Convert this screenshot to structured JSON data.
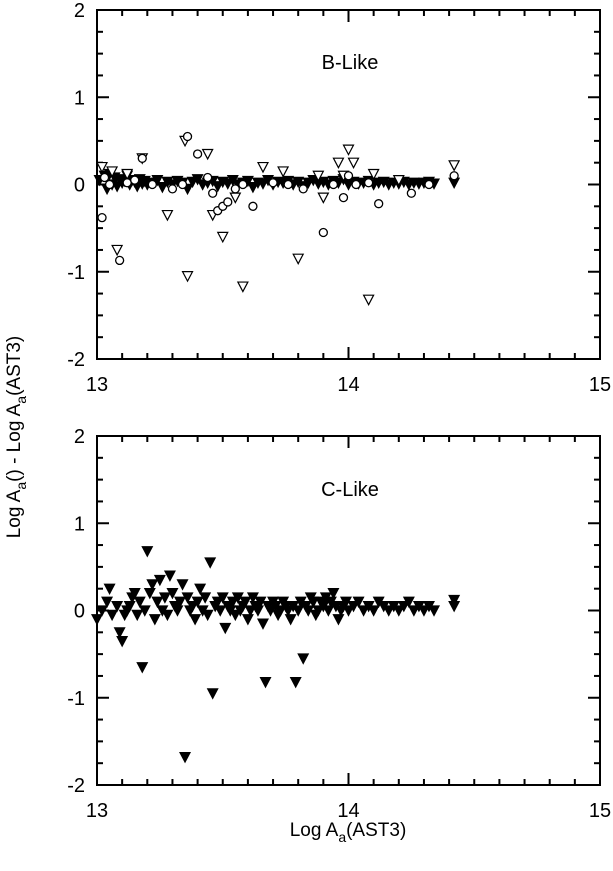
{
  "y_title": {
    "main": "Log A",
    "sub": "a",
    "tail": "() - Log A",
    "sub2": "a",
    "end": "(AST3)"
  },
  "x_title": {
    "main": "Log A",
    "sub": "a",
    "end": "(AST3)"
  },
  "chart_data": [
    {
      "type": "scatter",
      "panel_label": "B-Like",
      "xlim": [
        13,
        15
      ],
      "ylim": [
        -2,
        2
      ],
      "x_ticks": [
        "13",
        "14",
        "15"
      ],
      "y_ticks": [
        "2",
        "1",
        "0",
        "-1",
        "-2"
      ],
      "grid": false,
      "series": [
        {
          "marker": "filled-triangle-down",
          "x": [
            13.01,
            13.03,
            13.04,
            13.05,
            13.06,
            13.07,
            13.08,
            13.09,
            13.1,
            13.11,
            13.12,
            13.13,
            13.14,
            13.15,
            13.16,
            13.17,
            13.18,
            13.19,
            13.2,
            13.22,
            13.24,
            13.26,
            13.28,
            13.3,
            13.32,
            13.34,
            13.36,
            13.38,
            13.4,
            13.42,
            13.44,
            13.46,
            13.48,
            13.5,
            13.52,
            13.54,
            13.56,
            13.58,
            13.6,
            13.62,
            13.64,
            13.66,
            13.68,
            13.7,
            13.72,
            13.74,
            13.76,
            13.78,
            13.8,
            13.82,
            13.84,
            13.86,
            13.88,
            13.9,
            13.92,
            13.94,
            13.96,
            13.98,
            14.0,
            14.02,
            14.04,
            14.06,
            14.08,
            14.1,
            14.12,
            14.14,
            14.16,
            14.18,
            14.2,
            14.22,
            14.24,
            14.26,
            14.28,
            14.3,
            14.32,
            14.34,
            14.42
          ],
          "y": [
            0.05,
            0.1,
            -0.05,
            0.12,
            0.0,
            0.08,
            -0.02,
            0.06,
            0.02,
            0.04,
            0.1,
            0.0,
            0.05,
            0.03,
            -0.02,
            0.06,
            0.01,
            0.04,
            0.0,
            0.02,
            0.05,
            -0.03,
            0.03,
            0.0,
            0.04,
            0.02,
            -0.05,
            0.03,
            0.06,
            0.0,
            0.02,
            0.04,
            -0.02,
            0.03,
            0.01,
            0.05,
            0.0,
            0.02,
            0.04,
            -0.03,
            0.02,
            0.01,
            0.05,
            0.0,
            0.03,
            0.02,
            0.04,
            0.0,
            0.03,
            -0.02,
            0.02,
            0.05,
            0.01,
            0.03,
            0.0,
            0.04,
            0.02,
            0.06,
            0.0,
            0.03,
            0.01,
            0.02,
            0.04,
            0.0,
            0.02,
            0.03,
            0.0,
            0.02,
            0.01,
            0.03,
            0.0,
            0.02,
            0.01,
            0.02,
            0.03,
            0.01,
            0.02
          ]
        },
        {
          "marker": "open-triangle-down",
          "x": [
            13.02,
            13.06,
            13.08,
            13.12,
            13.18,
            13.28,
            13.35,
            13.36,
            13.44,
            13.46,
            13.5,
            13.55,
            13.58,
            13.66,
            13.74,
            13.8,
            13.88,
            13.9,
            13.96,
            13.98,
            14.0,
            14.02,
            14.08,
            14.1,
            14.2,
            14.42
          ],
          "y": [
            0.2,
            0.15,
            -0.75,
            0.12,
            0.3,
            -0.35,
            0.5,
            -1.05,
            0.35,
            -0.35,
            -0.6,
            -0.15,
            -1.17,
            0.2,
            0.15,
            -0.85,
            0.1,
            -0.15,
            0.25,
            0.1,
            0.4,
            0.25,
            -1.32,
            0.12,
            0.05,
            0.22
          ]
        },
        {
          "marker": "open-circle",
          "x": [
            13.02,
            13.03,
            13.05,
            13.09,
            13.12,
            13.15,
            13.18,
            13.22,
            13.3,
            13.34,
            13.36,
            13.4,
            13.44,
            13.46,
            13.48,
            13.5,
            13.52,
            13.55,
            13.58,
            13.62,
            13.7,
            13.76,
            13.82,
            13.9,
            13.94,
            13.98,
            14.0,
            14.03,
            14.08,
            14.12,
            14.25,
            14.32,
            14.42
          ],
          "y": [
            -0.38,
            0.08,
            0.0,
            -0.87,
            0.02,
            0.05,
            0.3,
            0.0,
            -0.05,
            0.0,
            0.55,
            0.35,
            0.08,
            -0.1,
            -0.3,
            -0.25,
            -0.2,
            -0.05,
            0.0,
            -0.25,
            0.02,
            0.0,
            -0.05,
            -0.55,
            0.0,
            -0.15,
            0.1,
            0.0,
            0.02,
            -0.22,
            -0.1,
            0.0,
            0.1
          ]
        }
      ]
    },
    {
      "type": "scatter",
      "panel_label": "C-Like",
      "xlim": [
        13,
        15
      ],
      "ylim": [
        -2,
        2
      ],
      "x_ticks": [
        "13",
        "14",
        "15"
      ],
      "y_ticks": [
        "2",
        "1",
        "0",
        "-1",
        "-2"
      ],
      "grid": false,
      "series": [
        {
          "marker": "filled-triangle-down",
          "x": [
            13.0,
            13.02,
            13.04,
            13.05,
            13.06,
            13.08,
            13.09,
            13.1,
            13.11,
            13.12,
            13.13,
            13.14,
            13.15,
            13.16,
            13.17,
            13.18,
            13.19,
            13.2,
            13.21,
            13.22,
            13.23,
            13.24,
            13.25,
            13.26,
            13.27,
            13.28,
            13.29,
            13.3,
            13.31,
            13.32,
            13.33,
            13.34,
            13.35,
            13.36,
            13.37,
            13.38,
            13.39,
            13.4,
            13.41,
            13.42,
            13.43,
            13.44,
            13.45,
            13.46,
            13.47,
            13.48,
            13.49,
            13.5,
            13.51,
            13.52,
            13.53,
            13.54,
            13.55,
            13.56,
            13.57,
            13.58,
            13.59,
            13.6,
            13.61,
            13.62,
            13.63,
            13.64,
            13.65,
            13.66,
            13.67,
            13.68,
            13.69,
            13.7,
            13.71,
            13.72,
            13.73,
            13.74,
            13.75,
            13.76,
            13.77,
            13.78,
            13.79,
            13.8,
            13.81,
            13.82,
            13.83,
            13.84,
            13.85,
            13.86,
            13.87,
            13.88,
            13.89,
            13.9,
            13.91,
            13.92,
            13.93,
            13.94,
            13.95,
            13.96,
            13.97,
            13.98,
            13.99,
            14.0,
            14.02,
            14.04,
            14.06,
            14.08,
            14.1,
            14.12,
            14.14,
            14.16,
            14.18,
            14.2,
            14.22,
            14.24,
            14.26,
            14.28,
            14.3,
            14.32,
            14.34,
            14.42,
            14.42
          ],
          "y": [
            -0.1,
            0.0,
            0.1,
            0.25,
            -0.05,
            0.05,
            -0.25,
            -0.35,
            -0.05,
            0.0,
            0.05,
            0.15,
            0.2,
            -0.05,
            0.1,
            -0.65,
            0.0,
            0.68,
            0.2,
            0.3,
            -0.1,
            0.1,
            0.35,
            0.0,
            0.15,
            -0.05,
            0.4,
            0.2,
            0.05,
            0.0,
            0.1,
            0.3,
            -1.68,
            0.15,
            0.0,
            0.05,
            -0.1,
            0.1,
            0.25,
            0.0,
            0.15,
            -0.05,
            0.55,
            -0.95,
            0.05,
            0.1,
            0.0,
            0.15,
            -0.2,
            0.05,
            0.0,
            0.1,
            -0.05,
            0.15,
            0.0,
            0.05,
            0.1,
            -0.1,
            0.0,
            0.15,
            0.05,
            0.0,
            0.1,
            -0.15,
            -0.82,
            0.05,
            0.0,
            0.1,
            0.05,
            -0.05,
            0.0,
            0.1,
            0.05,
            0.0,
            -0.1,
            0.05,
            -0.82,
            0.0,
            0.1,
            -0.55,
            0.05,
            0.0,
            0.15,
            0.1,
            -0.05,
            0.0,
            0.1,
            0.05,
            0.15,
            0.0,
            0.1,
            0.2,
            0.05,
            -0.1,
            0.0,
            0.05,
            0.1,
            0.0,
            0.05,
            0.1,
            0.0,
            0.05,
            0.0,
            0.1,
            0.05,
            0.0,
            0.05,
            0.0,
            0.05,
            0.1,
            0.0,
            0.05,
            0.0,
            0.05,
            0.0,
            0.05,
            0.12
          ]
        }
      ]
    }
  ]
}
